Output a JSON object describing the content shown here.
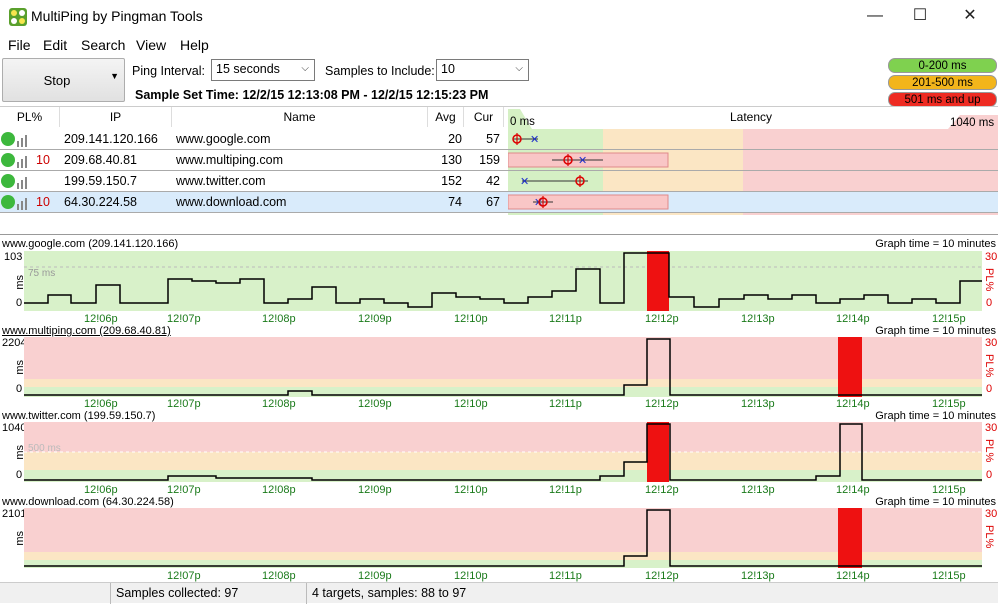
{
  "window": {
    "title": "MultiPing by Pingman Tools",
    "minimize": "—",
    "maximize": "☐",
    "close": "✕"
  },
  "menu": [
    "File",
    "Edit",
    "Search",
    "View",
    "Help"
  ],
  "toolbar": {
    "stop_label": "Stop",
    "ping_interval_label": "Ping Interval:",
    "ping_interval_value": "15 seconds",
    "samples_label": "Samples to Include:",
    "samples_value": "10",
    "sample_set_time": "Sample Set Time: 12/2/15 12:13:08 PM - 12/2/15 12:15:23 PM"
  },
  "legend": [
    {
      "label": "0-200 ms",
      "color": "#7fd14f"
    },
    {
      "label": "201-500 ms",
      "color": "#f3b51b"
    },
    {
      "label": "501 ms and up",
      "color": "#ee2b22"
    }
  ],
  "table": {
    "headers": {
      "pl": "PL%",
      "ip": "IP",
      "name": "Name",
      "avg": "Avg",
      "cur": "Cur",
      "latency": "Latency"
    },
    "latency_min": "0 ms",
    "latency_max": "1040 ms",
    "rows": [
      {
        "pl": "",
        "ip": "209.141.120.166",
        "name": "www.google.com",
        "avg": "20",
        "cur": "57"
      },
      {
        "pl": "10",
        "ip": "209.68.40.81",
        "name": "www.multiping.com",
        "avg": "130",
        "cur": "159"
      },
      {
        "pl": "",
        "ip": "199.59.150.7",
        "name": "www.twitter.com",
        "avg": "152",
        "cur": "42"
      },
      {
        "pl": "10",
        "ip": "64.30.224.58",
        "name": "www.download.com",
        "avg": "74",
        "cur": "67"
      }
    ]
  },
  "graphs": {
    "graph_time": "Graph time = 10 minutes",
    "pl_label": "PL%",
    "pl_max": "30",
    "ms_label": "ms",
    "x_ticks": [
      "12!06p",
      "12!07p",
      "12!08p",
      "12!09p",
      "12!10p",
      "12!11p",
      "12!12p",
      "12!13p",
      "12!14p",
      "12!15p"
    ],
    "items": [
      {
        "title": "www.google.com (209.141.120.166)",
        "ymax": "103",
        "ymid": "75 ms"
      },
      {
        "title": "www.multiping.com (209.68.40.81)",
        "ymax": "2204",
        "ymid": ""
      },
      {
        "title": "www.twitter.com (199.59.150.7)",
        "ymax": "1040",
        "ymid": "500 ms"
      },
      {
        "title": "www.download.com (64.30.224.58)",
        "ymax": "2101",
        "ymid": ""
      }
    ]
  },
  "status": {
    "samples_collected": "Samples collected: 97",
    "targets": "4 targets, samples: 88 to 97"
  }
}
